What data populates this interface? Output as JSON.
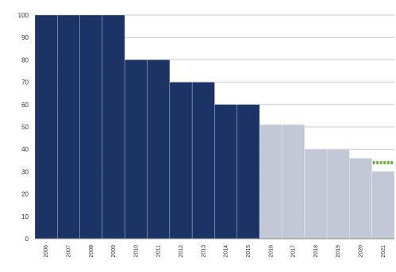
{
  "chart_data": {
    "type": "bar",
    "categories": [
      "2006",
      "2007",
      "2008",
      "2009",
      "2010",
      "2011",
      "2012",
      "2013",
      "2014",
      "2015",
      "2016",
      "2017",
      "2018",
      "2019",
      "2020",
      "2021"
    ],
    "values": [
      100,
      100,
      100,
      100,
      80,
      80,
      70,
      70,
      60,
      60,
      51,
      51,
      40,
      40,
      36,
      30
    ],
    "ylim": [
      0,
      100
    ],
    "yticks": [
      0,
      10,
      20,
      30,
      40,
      50,
      60,
      70,
      80,
      90,
      100
    ],
    "grid": true,
    "title": "",
    "xlabel": "",
    "ylabel": "",
    "colors": {
      "historic": "#1c3366",
      "projected": "#c2c8d6",
      "marker": "#6fae3e"
    },
    "highlight": {
      "category": "2021",
      "value": 34,
      "style": "green-dashed"
    }
  }
}
